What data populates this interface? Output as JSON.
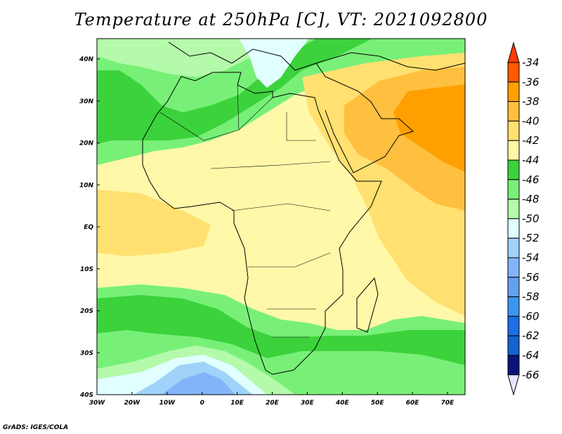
{
  "title": "Temperature at 250hPa [C], VT: 2021092800",
  "credit": "GrADS: IGES/COLA",
  "lat_ticks": [
    "40N",
    "30N",
    "20N",
    "10N",
    "EQ",
    "10S",
    "20S",
    "30S",
    "40S"
  ],
  "lon_ticks": [
    "30W",
    "20W",
    "10W",
    "0",
    "10E",
    "20E",
    "30E",
    "40E",
    "50E",
    "60E",
    "70E"
  ],
  "colorbar": {
    "labels": [
      "-34",
      "-36",
      "-38",
      "-40",
      "-42",
      "-44",
      "-46",
      "-48",
      "-50",
      "-52",
      "-54",
      "-56",
      "-58",
      "-60",
      "-62",
      "-64",
      "-66"
    ],
    "colors": [
      "#ff5a00",
      "#ffa000",
      "#ffc040",
      "#ffe070",
      "#fff8a8",
      "#3cd23c",
      "#78f078",
      "#b4faaa",
      "#e1ffff",
      "#a0d2fa",
      "#82b4fa",
      "#64a0f0",
      "#3c96f0",
      "#1e6ee6",
      "#1464d2",
      "#0c1478"
    ],
    "top_arrow": "#ff3c00",
    "bottom_arrow": "#e6e6fa"
  },
  "colors": {
    "bg": "#fff8a8",
    "warm1": "#ffe070",
    "warm2": "#ffc040",
    "warm3": "#ffa000",
    "g1": "#3cd23c",
    "g2": "#78f078",
    "g3": "#b4faaa",
    "b0": "#e1ffff",
    "b1": "#a0d2fa",
    "b2": "#82b4fa",
    "b3": "#64a0f0"
  }
}
